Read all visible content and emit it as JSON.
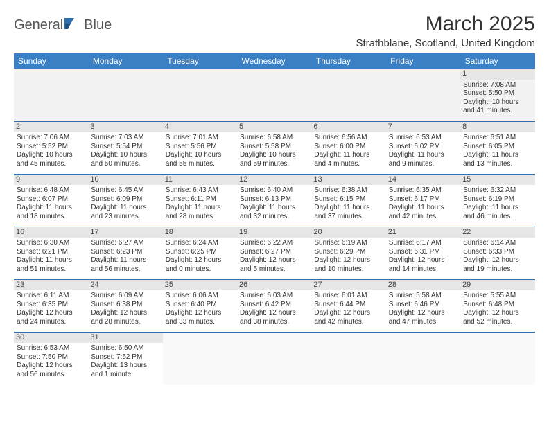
{
  "logo": {
    "word1": "General",
    "word2": "Blue"
  },
  "title": "March 2025",
  "location": "Strathblane, Scotland, United Kingdom",
  "colors": {
    "header_bg": "#3b7fc4",
    "header_text": "#ffffff",
    "cell_border": "#2f6fb0",
    "daynum_bg": "#e6e6e6",
    "logo_blue": "#2f6fb0",
    "text": "#333333"
  },
  "weekdays": [
    "Sunday",
    "Monday",
    "Tuesday",
    "Wednesday",
    "Thursday",
    "Friday",
    "Saturday"
  ],
  "days": {
    "1": {
      "sunrise": "Sunrise: 7:08 AM",
      "sunset": "Sunset: 5:50 PM",
      "daylight1": "Daylight: 10 hours",
      "daylight2": "and 41 minutes."
    },
    "2": {
      "sunrise": "Sunrise: 7:06 AM",
      "sunset": "Sunset: 5:52 PM",
      "daylight1": "Daylight: 10 hours",
      "daylight2": "and 45 minutes."
    },
    "3": {
      "sunrise": "Sunrise: 7:03 AM",
      "sunset": "Sunset: 5:54 PM",
      "daylight1": "Daylight: 10 hours",
      "daylight2": "and 50 minutes."
    },
    "4": {
      "sunrise": "Sunrise: 7:01 AM",
      "sunset": "Sunset: 5:56 PM",
      "daylight1": "Daylight: 10 hours",
      "daylight2": "and 55 minutes."
    },
    "5": {
      "sunrise": "Sunrise: 6:58 AM",
      "sunset": "Sunset: 5:58 PM",
      "daylight1": "Daylight: 10 hours",
      "daylight2": "and 59 minutes."
    },
    "6": {
      "sunrise": "Sunrise: 6:56 AM",
      "sunset": "Sunset: 6:00 PM",
      "daylight1": "Daylight: 11 hours",
      "daylight2": "and 4 minutes."
    },
    "7": {
      "sunrise": "Sunrise: 6:53 AM",
      "sunset": "Sunset: 6:02 PM",
      "daylight1": "Daylight: 11 hours",
      "daylight2": "and 9 minutes."
    },
    "8": {
      "sunrise": "Sunrise: 6:51 AM",
      "sunset": "Sunset: 6:05 PM",
      "daylight1": "Daylight: 11 hours",
      "daylight2": "and 13 minutes."
    },
    "9": {
      "sunrise": "Sunrise: 6:48 AM",
      "sunset": "Sunset: 6:07 PM",
      "daylight1": "Daylight: 11 hours",
      "daylight2": "and 18 minutes."
    },
    "10": {
      "sunrise": "Sunrise: 6:45 AM",
      "sunset": "Sunset: 6:09 PM",
      "daylight1": "Daylight: 11 hours",
      "daylight2": "and 23 minutes."
    },
    "11": {
      "sunrise": "Sunrise: 6:43 AM",
      "sunset": "Sunset: 6:11 PM",
      "daylight1": "Daylight: 11 hours",
      "daylight2": "and 28 minutes."
    },
    "12": {
      "sunrise": "Sunrise: 6:40 AM",
      "sunset": "Sunset: 6:13 PM",
      "daylight1": "Daylight: 11 hours",
      "daylight2": "and 32 minutes."
    },
    "13": {
      "sunrise": "Sunrise: 6:38 AM",
      "sunset": "Sunset: 6:15 PM",
      "daylight1": "Daylight: 11 hours",
      "daylight2": "and 37 minutes."
    },
    "14": {
      "sunrise": "Sunrise: 6:35 AM",
      "sunset": "Sunset: 6:17 PM",
      "daylight1": "Daylight: 11 hours",
      "daylight2": "and 42 minutes."
    },
    "15": {
      "sunrise": "Sunrise: 6:32 AM",
      "sunset": "Sunset: 6:19 PM",
      "daylight1": "Daylight: 11 hours",
      "daylight2": "and 46 minutes."
    },
    "16": {
      "sunrise": "Sunrise: 6:30 AM",
      "sunset": "Sunset: 6:21 PM",
      "daylight1": "Daylight: 11 hours",
      "daylight2": "and 51 minutes."
    },
    "17": {
      "sunrise": "Sunrise: 6:27 AM",
      "sunset": "Sunset: 6:23 PM",
      "daylight1": "Daylight: 11 hours",
      "daylight2": "and 56 minutes."
    },
    "18": {
      "sunrise": "Sunrise: 6:24 AM",
      "sunset": "Sunset: 6:25 PM",
      "daylight1": "Daylight: 12 hours",
      "daylight2": "and 0 minutes."
    },
    "19": {
      "sunrise": "Sunrise: 6:22 AM",
      "sunset": "Sunset: 6:27 PM",
      "daylight1": "Daylight: 12 hours",
      "daylight2": "and 5 minutes."
    },
    "20": {
      "sunrise": "Sunrise: 6:19 AM",
      "sunset": "Sunset: 6:29 PM",
      "daylight1": "Daylight: 12 hours",
      "daylight2": "and 10 minutes."
    },
    "21": {
      "sunrise": "Sunrise: 6:17 AM",
      "sunset": "Sunset: 6:31 PM",
      "daylight1": "Daylight: 12 hours",
      "daylight2": "and 14 minutes."
    },
    "22": {
      "sunrise": "Sunrise: 6:14 AM",
      "sunset": "Sunset: 6:33 PM",
      "daylight1": "Daylight: 12 hours",
      "daylight2": "and 19 minutes."
    },
    "23": {
      "sunrise": "Sunrise: 6:11 AM",
      "sunset": "Sunset: 6:35 PM",
      "daylight1": "Daylight: 12 hours",
      "daylight2": "and 24 minutes."
    },
    "24": {
      "sunrise": "Sunrise: 6:09 AM",
      "sunset": "Sunset: 6:38 PM",
      "daylight1": "Daylight: 12 hours",
      "daylight2": "and 28 minutes."
    },
    "25": {
      "sunrise": "Sunrise: 6:06 AM",
      "sunset": "Sunset: 6:40 PM",
      "daylight1": "Daylight: 12 hours",
      "daylight2": "and 33 minutes."
    },
    "26": {
      "sunrise": "Sunrise: 6:03 AM",
      "sunset": "Sunset: 6:42 PM",
      "daylight1": "Daylight: 12 hours",
      "daylight2": "and 38 minutes."
    },
    "27": {
      "sunrise": "Sunrise: 6:01 AM",
      "sunset": "Sunset: 6:44 PM",
      "daylight1": "Daylight: 12 hours",
      "daylight2": "and 42 minutes."
    },
    "28": {
      "sunrise": "Sunrise: 5:58 AM",
      "sunset": "Sunset: 6:46 PM",
      "daylight1": "Daylight: 12 hours",
      "daylight2": "and 47 minutes."
    },
    "29": {
      "sunrise": "Sunrise: 5:55 AM",
      "sunset": "Sunset: 6:48 PM",
      "daylight1": "Daylight: 12 hours",
      "daylight2": "and 52 minutes."
    },
    "30": {
      "sunrise": "Sunrise: 6:53 AM",
      "sunset": "Sunset: 7:50 PM",
      "daylight1": "Daylight: 12 hours",
      "daylight2": "and 56 minutes."
    },
    "31": {
      "sunrise": "Sunrise: 6:50 AM",
      "sunset": "Sunset: 7:52 PM",
      "daylight1": "Daylight: 13 hours",
      "daylight2": "and 1 minute."
    }
  },
  "grid": [
    [
      null,
      null,
      null,
      null,
      null,
      null,
      "1"
    ],
    [
      "2",
      "3",
      "4",
      "5",
      "6",
      "7",
      "8"
    ],
    [
      "9",
      "10",
      "11",
      "12",
      "13",
      "14",
      "15"
    ],
    [
      "16",
      "17",
      "18",
      "19",
      "20",
      "21",
      "22"
    ],
    [
      "23",
      "24",
      "25",
      "26",
      "27",
      "28",
      "29"
    ],
    [
      "30",
      "31",
      null,
      null,
      null,
      null,
      null
    ]
  ]
}
